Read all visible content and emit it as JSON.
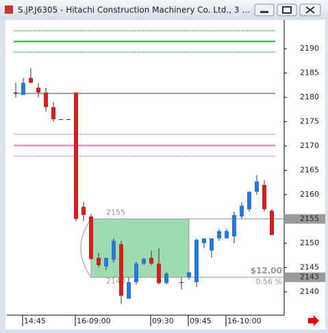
{
  "chart_data": {
    "type": "candlestick",
    "title": "S.JP.J6305 - Hitachi Construction Machinery Co. Ltd., 3 ...",
    "categories": [
      null,
      "14:45",
      null,
      null,
      null,
      null,
      null,
      null,
      "16-09:00",
      null,
      null,
      null,
      null,
      null,
      null,
      null,
      null,
      null,
      "09:30",
      null,
      null,
      null,
      null,
      "09:45",
      null,
      null,
      null,
      null,
      "16-10:00",
      null,
      null,
      null,
      null,
      null,
      null
    ],
    "open": [
      2181,
      2180.5,
      2184,
      2182,
      2181,
      2178,
      2175.5,
      2175.5,
      2181,
      2157.5,
      2155.5,
      2147,
      2145.2,
      2146.6,
      2149.8,
      2138.6,
      2142,
      2145.8,
      2147,
      2145.8,
      2141.8,
      null,
      2142,
      2143,
      2142,
      2150,
      2148.5,
      2151,
      2151,
      2151.4,
      2155.5,
      2157,
      2160.6,
      2162,
      2156.7
    ],
    "high": [
      2183,
      2184,
      2186,
      2183,
      2182,
      2179,
      2175.5,
      2175.5,
      2181,
      2158.5,
      2156,
      2148,
      2147,
      2151,
      2150.5,
      2143,
      2146.2,
      2147,
      2148.5,
      2149,
      2144,
      null,
      2143,
      2144,
      2151,
      2151,
      2151,
      2153,
      2153,
      2156.5,
      2158.5,
      2160.6,
      2164,
      2163,
      2157
    ],
    "low": [
      2180,
      2180.5,
      2183,
      2180,
      2177,
      2175,
      2175.5,
      2175.5,
      2154.5,
      2154.5,
      2146.5,
      2145,
      2144.5,
      2146,
      2137.5,
      2138.6,
      2141.5,
      2145.5,
      2145.5,
      2141.5,
      2141.5,
      null,
      2140.5,
      2142.5,
      2141,
      2149,
      2147,
      2150.5,
      2151,
      2150,
      2155,
      2156.5,
      2160,
      2156.5,
      2151.7
    ],
    "close": [
      2181,
      2183,
      2183,
      2181,
      2178,
      2175.5,
      2175.5,
      2175.5,
      2155,
      2155.8,
      2146.8,
      2145.5,
      2147,
      2150.5,
      2139.2,
      2142,
      2145.8,
      2146.8,
      2145.8,
      2141.8,
      2143.7,
      null,
      2142,
      2144,
      2150.7,
      2151,
      2151,
      2152.5,
      2152.5,
      2155.8,
      2157.7,
      2160.6,
      2162.7,
      2157,
      2151.7
    ],
    "up_color": "#2a78d6",
    "down_color": "#d21f1f",
    "ylim": [
      2135.2,
      2195.8
    ],
    "yticks": [
      2140,
      2145,
      2150,
      2155,
      2160,
      2165,
      2170,
      2175,
      2180,
      2185,
      2190
    ],
    "levels": [
      {
        "value": 2193.7,
        "color": "#22b04a",
        "style": "dashed"
      },
      {
        "value": 2191.5,
        "color": "#22b04a",
        "style": "solid"
      },
      {
        "value": 2189.3,
        "color": "#22b04a",
        "style": "dashed"
      },
      {
        "value": 2172.4,
        "color": "#e878b8",
        "style": "dashed"
      },
      {
        "value": 2170.1,
        "color": "#e878b8",
        "style": "solid"
      },
      {
        "value": 2167.9,
        "color": "#e878b8",
        "style": "dashed"
      },
      {
        "value": 2180.8,
        "color": "#9a9a9a",
        "style": "solid"
      }
    ],
    "box": {
      "top": 2155,
      "bottom": 2143,
      "start": 10,
      "end": 23,
      "color": "#7fcf95"
    },
    "annotations": [
      "$12.00",
      "0.56 %"
    ],
    "price_markers": [
      2155,
      2143
    ]
  }
}
